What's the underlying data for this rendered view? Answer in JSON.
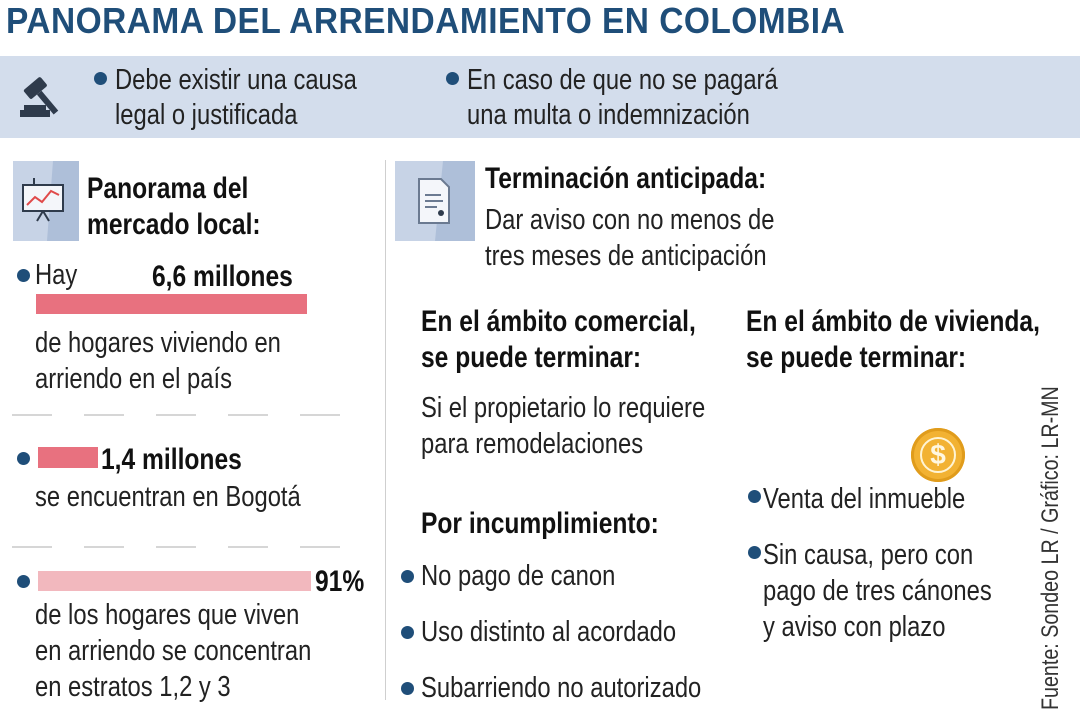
{
  "title": "PANORAMA DEL ARRENDAMIENTO EN COLOMBIA",
  "banner": {
    "item1_line1": "Debe existir una causa",
    "item1_line2": "legal o justificada",
    "item2_line1": "En caso de que no se pagará",
    "item2_line2": "una multa o indemnización",
    "icon": "gavel-icon"
  },
  "market": {
    "heading_line1": "Panorama del",
    "heading_line2": "mercado local:",
    "icon": "chart-presentation-icon",
    "stat1": {
      "prefix": "Hay",
      "value": "6,6 millones",
      "desc_line1": "de hogares viviendo en",
      "desc_line2": "arriendo en el país"
    },
    "stat2": {
      "value": "1,4 millones",
      "desc_line1": "se encuentran en Bogotá"
    },
    "stat3": {
      "value": "91%",
      "desc_line1": "de los hogares que viven",
      "desc_line2": "en arriendo se concentran",
      "desc_line3": "en estratos 1,2 y 3"
    }
  },
  "termination": {
    "heading": "Terminación anticipada:",
    "desc_line1": "Dar aviso con no menos de",
    "desc_line2": "tres meses de anticipación",
    "icon": "document-icon"
  },
  "commercial": {
    "heading_line1": "En el ámbito comercial,",
    "heading_line2": "se puede terminar:",
    "desc_line1": "Si el propietario lo requiere",
    "desc_line2": "para remodelaciones"
  },
  "breach": {
    "heading": "Por incumplimiento:",
    "items": [
      "No pago de canon",
      "Uso distinto al acordado",
      "Subarriendo no autorizado"
    ]
  },
  "housing": {
    "heading_line1": "En el ámbito de vivienda,",
    "heading_line2": "se puede terminar:",
    "icon": "dollar-coin-icon",
    "coin_symbol": "$",
    "item1": "Venta del inmueble",
    "item2_line1": "Sin causa, pero con",
    "item2_line2": "pago de tres cánones",
    "item2_line3": "y aviso con plazo"
  },
  "source": "Fuente: Sondeo LR / Gráfico: LR-MN",
  "colors": {
    "title": "#1f4e79",
    "banner": "#d3ddec",
    "bar_strong": "#e8717f",
    "bar_light": "#f2b8be",
    "coin": "#f2b233"
  }
}
